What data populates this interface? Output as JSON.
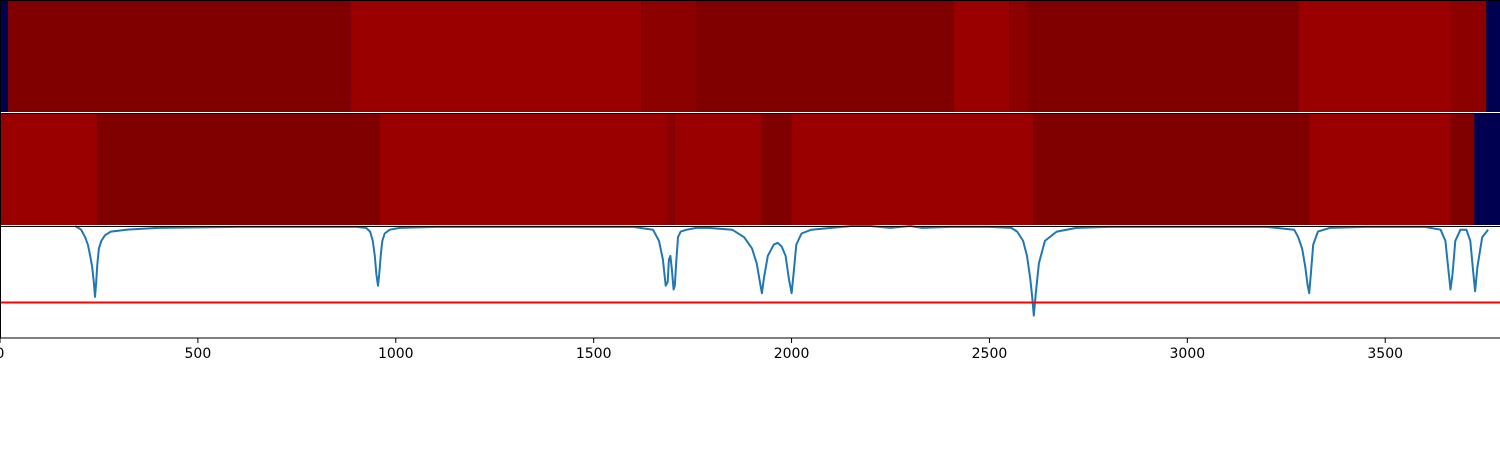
{
  "chart_data": [
    {
      "type": "heatmap",
      "xlim": [
        0,
        3790
      ],
      "background_color": "#000050",
      "segments": [
        {
          "x0": 20,
          "x1": 885,
          "level": "dark",
          "color": "#800000"
        },
        {
          "x0": 885,
          "x1": 1620,
          "level": "bright",
          "color": "#9b0000"
        },
        {
          "x0": 1620,
          "x1": 1760,
          "level": "medium",
          "color": "#8c0000"
        },
        {
          "x0": 1760,
          "x1": 2410,
          "level": "dark",
          "color": "#800000"
        },
        {
          "x0": 2410,
          "x1": 2550,
          "level": "bright",
          "color": "#9b0000"
        },
        {
          "x0": 2550,
          "x1": 2595,
          "level": "medium",
          "color": "#8c0000"
        },
        {
          "x0": 2595,
          "x1": 3280,
          "level": "dark",
          "color": "#800000"
        },
        {
          "x0": 3280,
          "x1": 3665,
          "level": "bright",
          "color": "#9b0000"
        },
        {
          "x0": 3665,
          "x1": 3755,
          "level": "medium",
          "color": "#8c0000"
        }
      ]
    },
    {
      "type": "heatmap",
      "xlim": [
        0,
        3790
      ],
      "background_color": "#000050",
      "segments": [
        {
          "x0": 0,
          "x1": 245,
          "level": "bright",
          "color": "#9b0000"
        },
        {
          "x0": 245,
          "x1": 960,
          "level": "dark",
          "color": "#800000"
        },
        {
          "x0": 960,
          "x1": 1685,
          "level": "bright",
          "color": "#9b0000"
        },
        {
          "x0": 1685,
          "x1": 1705,
          "level": "medium",
          "color": "#8c0000"
        },
        {
          "x0": 1705,
          "x1": 1925,
          "level": "bright",
          "color": "#9b0000"
        },
        {
          "x0": 1925,
          "x1": 2000,
          "level": "dark",
          "color": "#800000"
        },
        {
          "x0": 2000,
          "x1": 2610,
          "level": "bright",
          "color": "#9b0000"
        },
        {
          "x0": 2610,
          "x1": 3308,
          "level": "dark",
          "color": "#800000"
        },
        {
          "x0": 3308,
          "x1": 3665,
          "level": "bright",
          "color": "#9b0000"
        },
        {
          "x0": 3665,
          "x1": 3725,
          "level": "dark",
          "color": "#800000"
        }
      ]
    },
    {
      "type": "line",
      "xlim": [
        0,
        3790
      ],
      "ylim": [
        -0.6,
        0.0
      ],
      "grid": false,
      "xticks": [
        0,
        500,
        1000,
        1500,
        2000,
        2500,
        3000,
        3500
      ],
      "xtick_labels": [
        "0",
        "500",
        "1000",
        "1500",
        "2000",
        "2500",
        "3000",
        "3500"
      ],
      "line_color": "#1f77b4",
      "threshold": {
        "y": -0.41,
        "color": "#ff0000"
      },
      "series": [
        {
          "x": [
            190,
            205,
            215,
            222,
            228,
            233,
            237,
            240,
            243,
            246,
            250,
            256,
            265,
            280,
            320,
            400,
            600,
            900,
            925,
            935,
            942,
            947,
            951,
            955,
            958,
            962,
            966,
            972,
            985,
            1010,
            1100,
            1400,
            1600,
            1650,
            1665,
            1675,
            1682,
            1687,
            1690,
            1694,
            1698,
            1702,
            1705,
            1709,
            1713,
            1720,
            1735,
            1760,
            1790,
            1850,
            1880,
            1900,
            1912,
            1920,
            1925,
            1930,
            1940,
            1955,
            1965,
            1975,
            1985,
            1993,
            2000,
            2005,
            2012,
            2025,
            2050,
            2100,
            2150,
            2200,
            2250,
            2300,
            2330,
            2400,
            2500,
            2555,
            2570,
            2585,
            2595,
            2603,
            2608,
            2612,
            2617,
            2625,
            2640,
            2670,
            2720,
            2800,
            3000,
            3200,
            3270,
            3280,
            3290,
            3298,
            3304,
            3308,
            3312,
            3318,
            3330,
            3360,
            3450,
            3600,
            3640,
            3652,
            3660,
            3665,
            3670,
            3677,
            3690,
            3705,
            3715,
            3722,
            3727,
            3733,
            3745,
            3760
          ],
          "y": [
            0.0,
            -0.02,
            -0.06,
            -0.1,
            -0.16,
            -0.22,
            -0.3,
            -0.38,
            -0.3,
            -0.2,
            -0.12,
            -0.08,
            -0.05,
            -0.03,
            -0.02,
            -0.01,
            -0.005,
            -0.005,
            -0.01,
            -0.03,
            -0.08,
            -0.16,
            -0.26,
            -0.32,
            -0.26,
            -0.16,
            -0.08,
            -0.04,
            -0.02,
            -0.01,
            -0.005,
            -0.005,
            -0.005,
            -0.02,
            -0.08,
            -0.18,
            -0.32,
            -0.3,
            -0.18,
            -0.16,
            -0.24,
            -0.34,
            -0.32,
            -0.18,
            -0.06,
            -0.03,
            -0.02,
            -0.01,
            -0.01,
            -0.02,
            -0.06,
            -0.12,
            -0.2,
            -0.3,
            -0.36,
            -0.28,
            -0.16,
            -0.1,
            -0.09,
            -0.11,
            -0.16,
            -0.28,
            -0.36,
            -0.26,
            -0.1,
            -0.04,
            -0.02,
            -0.01,
            0.0,
            0.0,
            -0.01,
            0.0,
            -0.01,
            -0.005,
            -0.005,
            -0.01,
            -0.03,
            -0.08,
            -0.16,
            -0.28,
            -0.38,
            -0.48,
            -0.36,
            -0.2,
            -0.08,
            -0.03,
            -0.01,
            -0.005,
            -0.005,
            -0.005,
            -0.02,
            -0.06,
            -0.12,
            -0.22,
            -0.32,
            -0.36,
            -0.26,
            -0.1,
            -0.03,
            -0.01,
            -0.005,
            -0.005,
            -0.02,
            -0.08,
            -0.24,
            -0.34,
            -0.26,
            -0.08,
            -0.02,
            -0.02,
            -0.08,
            -0.24,
            -0.35,
            -0.22,
            -0.06,
            -0.02
          ]
        }
      ]
    }
  ]
}
